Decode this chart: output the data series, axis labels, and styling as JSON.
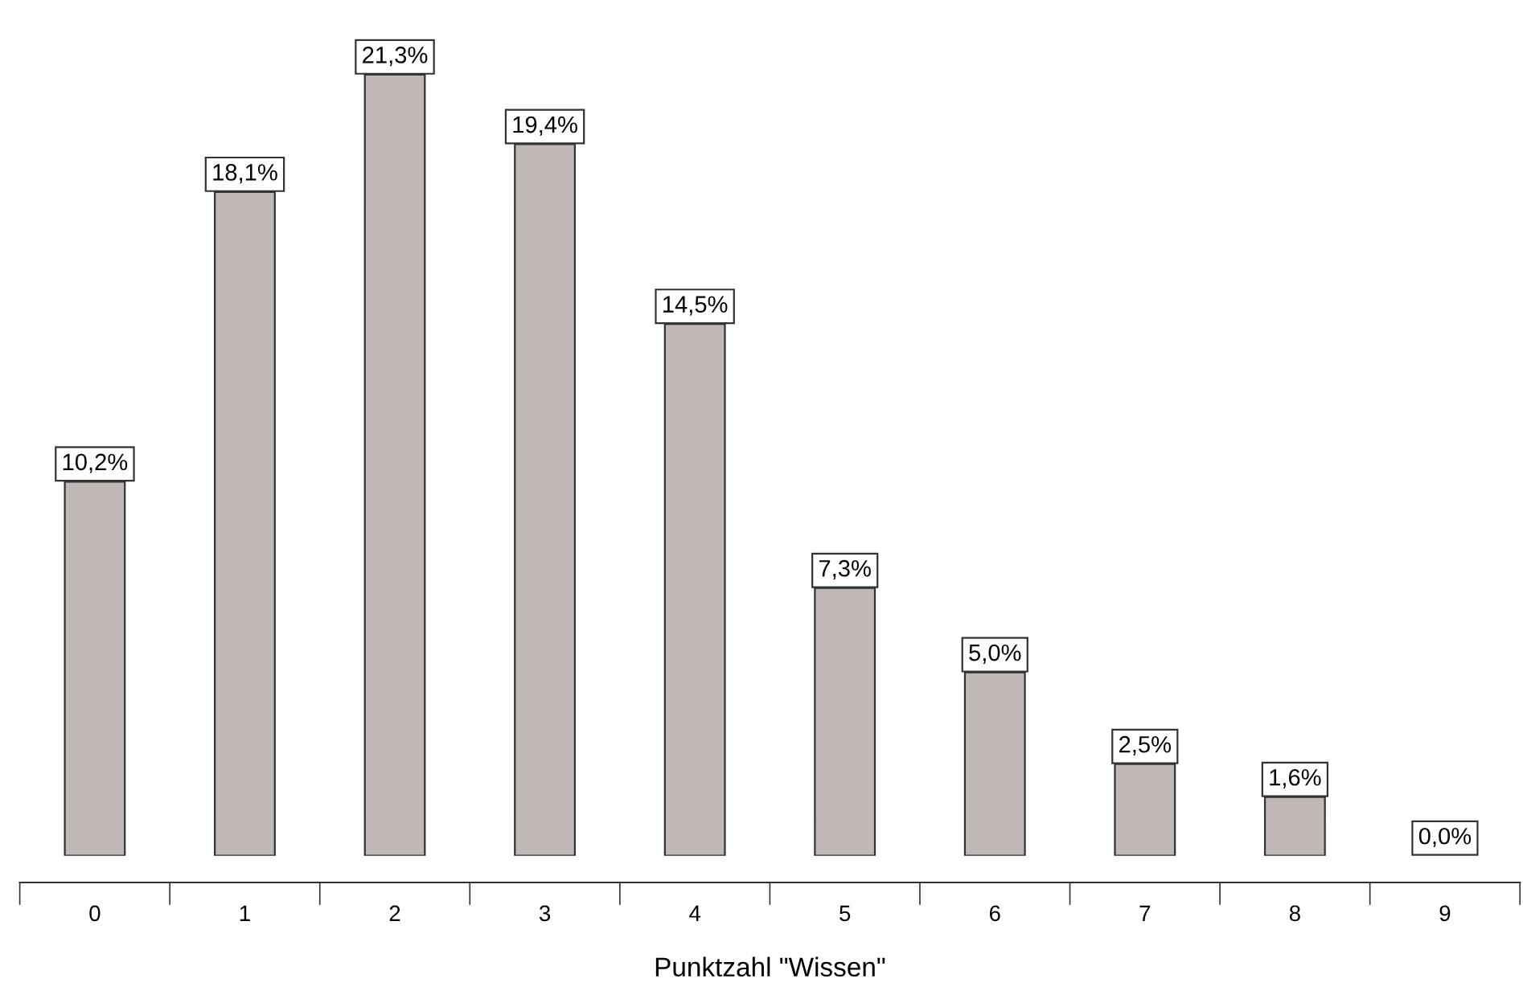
{
  "chart_data": {
    "type": "bar",
    "xlabel": "Punktzahl \"Wissen\"",
    "categories": [
      "0",
      "1",
      "2",
      "3",
      "4",
      "5",
      "6",
      "7",
      "8",
      "9"
    ],
    "values": [
      10.2,
      18.1,
      21.3,
      19.4,
      14.5,
      7.3,
      5.0,
      2.5,
      1.6,
      0.0
    ],
    "value_labels": [
      "10,2%",
      "18,1%",
      "21,3%",
      "19,4%",
      "14,5%",
      "7,3%",
      "5,0%",
      "2,5%",
      "1,6%",
      "0,0%"
    ],
    "color": "#c0b8b6",
    "grid": false,
    "legend": false
  }
}
